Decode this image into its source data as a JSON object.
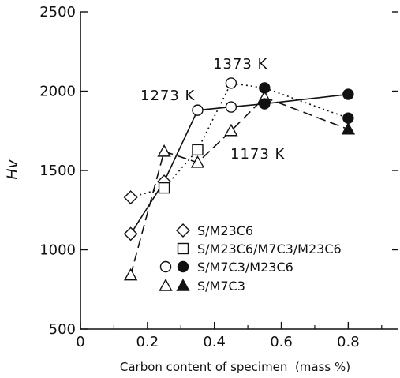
{
  "chart_data": {
    "type": "line",
    "xlabel": "Carbon content of specimen  (mass %)",
    "ylabel": "Hv",
    "xlim": [
      0,
      0.95
    ],
    "ylim": [
      500,
      2500
    ],
    "xticks": [
      0,
      0.2,
      0.4,
      0.6,
      0.8
    ],
    "xtick_labels": [
      "0",
      "0.2",
      "0.4",
      "0.6",
      "0.8"
    ],
    "yticks": [
      500,
      1000,
      1500,
      2000,
      2500
    ],
    "ytick_labels": [
      "500",
      "1000",
      "1500",
      "2000",
      "2500"
    ],
    "grid": false,
    "series": [
      {
        "name": "1173 K",
        "line": "long-dash",
        "x": [
          0.15,
          0.25,
          0.35,
          0.45,
          0.55,
          0.8
        ],
        "y": [
          840,
          1620,
          1550,
          1750,
          1960,
          1760
        ],
        "markers": [
          "triangle",
          "triangle",
          "triangle",
          "triangle",
          "triangle",
          "triangle-filled"
        ]
      },
      {
        "name": "1273 K",
        "line": "solid",
        "x": [
          0.15,
          0.25,
          0.35,
          0.45,
          0.55,
          0.8
        ],
        "y": [
          1100,
          1430,
          1880,
          1900,
          1920,
          1980
        ],
        "markers": [
          "diamond",
          "diamond",
          "circle",
          "circle",
          "circle-filled",
          "circle-filled"
        ]
      },
      {
        "name": "1373 K",
        "line": "dotted",
        "x": [
          0.15,
          0.25,
          0.35,
          0.45,
          0.55,
          0.8
        ],
        "y": [
          1330,
          1390,
          1630,
          2050,
          2020,
          1830
        ],
        "markers": [
          "diamond",
          "square",
          "square",
          "circle",
          "circle-filled",
          "circle-filled"
        ]
      }
    ],
    "annotations": [
      {
        "text": "1373 K",
        "series": "1373 K"
      },
      {
        "text": "1273 K",
        "series": "1273 K"
      },
      {
        "text": "1173 K",
        "series": "1173 K"
      }
    ],
    "legend": {
      "placement": "lower-center",
      "entries": [
        {
          "label": "S/M23C6",
          "markers": [
            "diamond"
          ]
        },
        {
          "label": "S/M23C6/M7C3/M23C6",
          "markers": [
            "square"
          ]
        },
        {
          "label": "S/M7C3/M23C6",
          "markers": [
            "circle",
            "circle-filled"
          ]
        },
        {
          "label": "S/M7C3",
          "markers": [
            "triangle",
            "triangle-filled"
          ]
        }
      ]
    }
  }
}
